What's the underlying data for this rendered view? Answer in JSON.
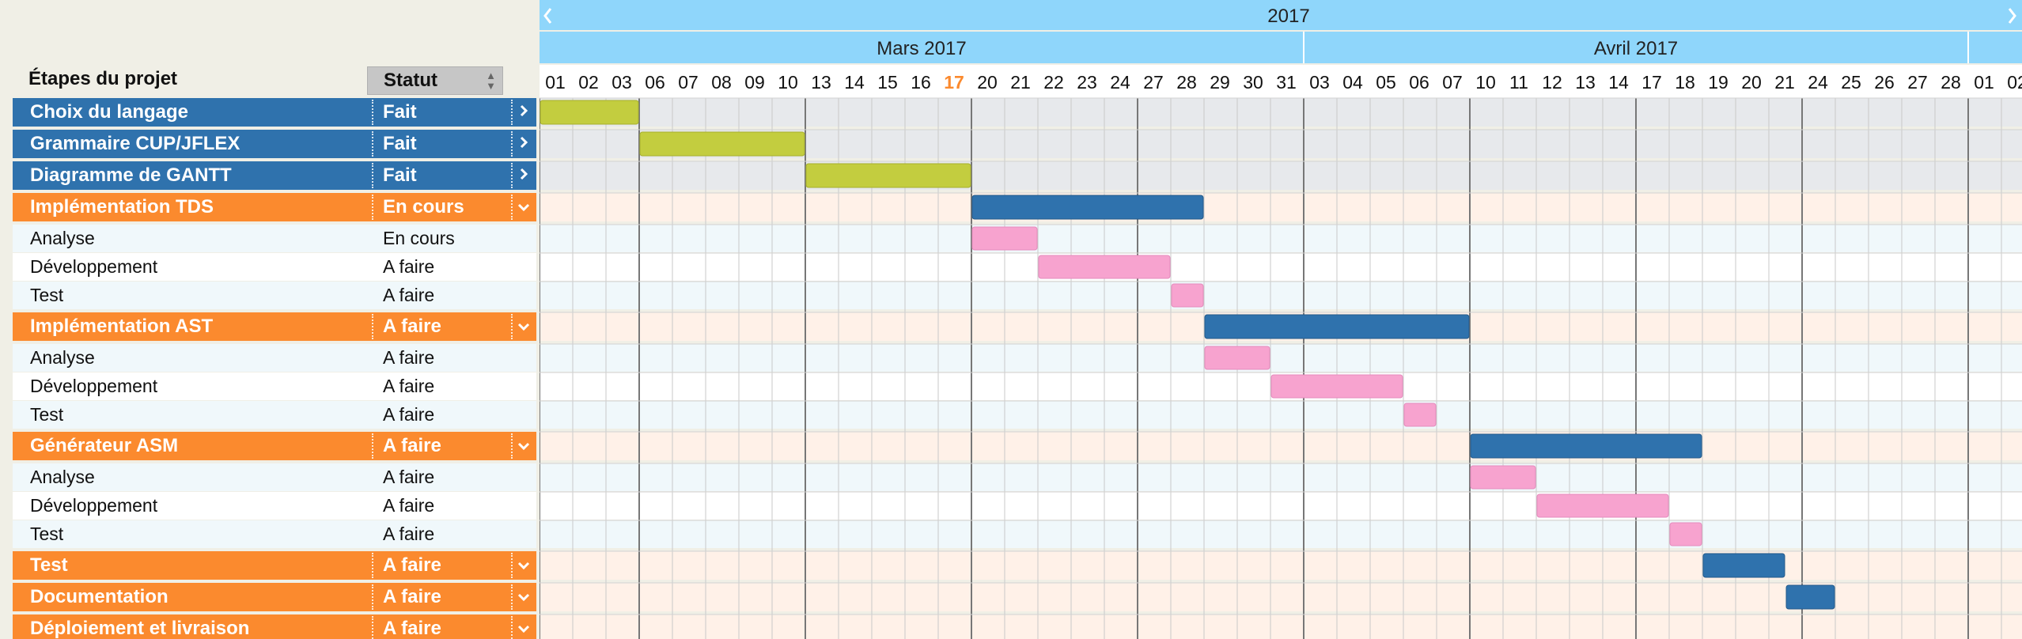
{
  "header": {
    "col_stage": "Étapes du projet",
    "col_status": "Statut",
    "sort_icon": "sort-updown-icon"
  },
  "timeline": {
    "year": "2017",
    "prev_icon": "chevron-left-icon",
    "next_icon": "chevron-right-icon",
    "months": [
      {
        "label": "Mars 2017",
        "start_day": 0,
        "day_count": 23
      },
      {
        "label": "Avril 2017",
        "start_day": 23,
        "day_count": 20
      }
    ],
    "days": [
      "01",
      "02",
      "03",
      "06",
      "07",
      "08",
      "09",
      "10",
      "13",
      "14",
      "15",
      "16",
      "17",
      "20",
      "21",
      "22",
      "23",
      "24",
      "27",
      "28",
      "29",
      "30",
      "31",
      "03",
      "04",
      "05",
      "06",
      "07",
      "10",
      "11",
      "12",
      "13",
      "14",
      "17",
      "18",
      "19",
      "20",
      "21",
      "24",
      "25",
      "26",
      "27",
      "28",
      "01",
      "02"
    ],
    "today_index": 12
  },
  "colors": {
    "parent_done": "#2f72ad",
    "parent_active": "#fb8a2e",
    "bar_done": "#c3cd3f",
    "bar_task": "#2f72ad",
    "bar_subtask": "#f7a3cf",
    "today": "#fb8a2e",
    "header_bg": "#8fd6fb"
  },
  "tasks": [
    {
      "name": "Choix du langage",
      "status": "Fait",
      "level": 0,
      "group": "done",
      "expand_icon": "chevron-right-icon",
      "start": 0,
      "end": 3
    },
    {
      "name": "Grammaire CUP/JFLEX",
      "status": "Fait",
      "level": 0,
      "group": "done",
      "expand_icon": "chevron-right-icon",
      "start": 3,
      "end": 8
    },
    {
      "name": "Diagramme de GANTT",
      "status": "Fait",
      "level": 0,
      "group": "done",
      "expand_icon": "chevron-right-icon",
      "start": 8,
      "end": 13
    },
    {
      "name": "Implémentation TDS",
      "status": "En cours",
      "level": 0,
      "group": "active",
      "expand_icon": "chevron-down-icon",
      "start": 13,
      "end": 20
    },
    {
      "name": "Analyse",
      "status": "En cours",
      "level": 1,
      "start": 13,
      "end": 15
    },
    {
      "name": "Développement",
      "status": "A faire",
      "level": 1,
      "start": 15,
      "end": 19
    },
    {
      "name": "Test",
      "status": "A faire",
      "level": 1,
      "start": 19,
      "end": 20
    },
    {
      "name": "Implémentation AST",
      "status": "A faire",
      "level": 0,
      "group": "active",
      "expand_icon": "chevron-down-icon",
      "start": 20,
      "end": 28
    },
    {
      "name": "Analyse",
      "status": "A faire",
      "level": 1,
      "start": 20,
      "end": 22
    },
    {
      "name": "Développement",
      "status": "A faire",
      "level": 1,
      "start": 22,
      "end": 26
    },
    {
      "name": "Test",
      "status": "A faire",
      "level": 1,
      "start": 26,
      "end": 27
    },
    {
      "name": "Générateur ASM",
      "status": "A faire",
      "level": 0,
      "group": "active",
      "expand_icon": "chevron-down-icon",
      "start": 28,
      "end": 35
    },
    {
      "name": "Analyse",
      "status": "A faire",
      "level": 1,
      "start": 28,
      "end": 30
    },
    {
      "name": "Développement",
      "status": "A faire",
      "level": 1,
      "start": 30,
      "end": 34
    },
    {
      "name": "Test",
      "status": "A faire",
      "level": 1,
      "start": 34,
      "end": 35
    },
    {
      "name": "Test",
      "status": "A faire",
      "level": 0,
      "group": "active",
      "expand_icon": "chevron-down-icon",
      "start": 35,
      "end": 37.5
    },
    {
      "name": "Documentation",
      "status": "A faire",
      "level": 0,
      "group": "active",
      "expand_icon": "chevron-down-icon",
      "start": 37.5,
      "end": 39
    },
    {
      "name": "Déploiement et livraison",
      "status": "A faire",
      "level": 0,
      "group": "active",
      "expand_icon": "chevron-down-icon",
      "start": 39,
      "end": 39
    }
  ]
}
